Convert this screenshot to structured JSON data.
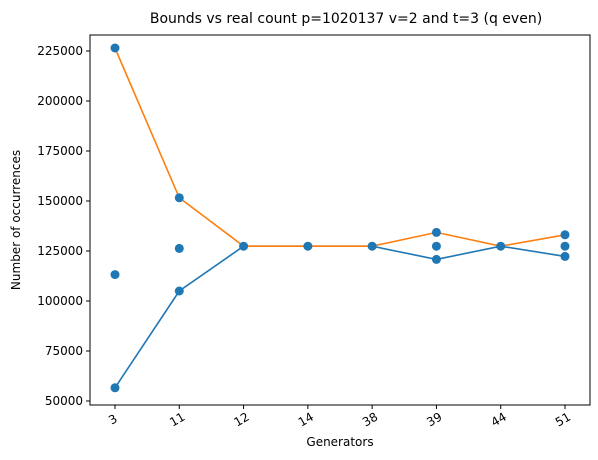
{
  "chart_data": {
    "type": "line",
    "title": "Bounds vs real count p=1020137 v=2 and t=3 (q even)",
    "xlabel": "Generators",
    "ylabel": "Number of occurrences",
    "categories": [
      "3",
      "11",
      "12",
      "14",
      "38",
      "39",
      "44",
      "51"
    ],
    "ylim": [
      48000,
      233000
    ],
    "yticks": [
      50000,
      75000,
      100000,
      125000,
      150000,
      175000,
      200000,
      225000
    ],
    "grid": false,
    "legend": "none",
    "series": [
      {
        "color": "#1f77b4",
        "kind": "line",
        "values": [
          56600,
          105000,
          127400,
          127400,
          127400,
          120800,
          127400,
          122300
        ]
      },
      {
        "color": "#ff7f0e",
        "kind": "line",
        "values": [
          226500,
          151600,
          127400,
          127400,
          127400,
          134300,
          127400,
          133100
        ]
      },
      {
        "color": "#1f77b4",
        "kind": "scatter",
        "points": [
          [
            "3",
            56600
          ],
          [
            "3",
            113200
          ],
          [
            "3",
            226500
          ],
          [
            "11",
            105000
          ],
          [
            "11",
            126300
          ],
          [
            "11",
            151600
          ],
          [
            "12",
            127400
          ],
          [
            "14",
            127400
          ],
          [
            "38",
            127400
          ],
          [
            "39",
            120800
          ],
          [
            "39",
            127400
          ],
          [
            "39",
            134300
          ],
          [
            "44",
            127400
          ],
          [
            "51",
            122300
          ],
          [
            "51",
            127400
          ],
          [
            "51",
            133100
          ]
        ]
      }
    ]
  }
}
